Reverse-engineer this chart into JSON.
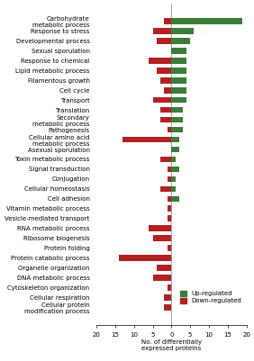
{
  "categories": [
    "Carbohydrate\nmetabolic process",
    "Response to stress",
    "Developmental process",
    "Sexual sporulation",
    "Response to chemical",
    "Lipid metabolic process",
    "Filamentous growth",
    "Cell cycle",
    "Transport",
    "Translation",
    "Secondary\nmetabolic process",
    "Pathogenesis",
    "Cellular amino acid\nmetabolic process",
    "Asexual sporulation",
    "Toxin metabolic process",
    "Signal transduction",
    "Conjugation",
    "Cellular homeostasis",
    "Cell adhesion",
    "Vitamin metabolic process",
    "Vesicle-mediated transport",
    "RNA metabolic process",
    "Ribosome biogenesis",
    "Protein folding",
    "Protein catabolic process",
    "Organelle organization",
    "DNA metabolic process",
    "Cytoskeleton organization",
    "Cellular respiration",
    "Cellular protein\nmodification process"
  ],
  "up_regulated": [
    19,
    6,
    5,
    4,
    4,
    4,
    4,
    4,
    4,
    3,
    3,
    3,
    2,
    2,
    1,
    2,
    1,
    1,
    2,
    0,
    0,
    0,
    0,
    0,
    0,
    0,
    0,
    0,
    0,
    0
  ],
  "down_regulated": [
    -2,
    -5,
    -4,
    0,
    -6,
    -4,
    -3,
    -2,
    -5,
    -3,
    -3,
    -1,
    -13,
    0,
    -3,
    -1,
    -1,
    -3,
    -1,
    -1,
    -1,
    -6,
    -5,
    -1,
    -14,
    -4,
    -5,
    -1,
    -2,
    -2
  ],
  "up_color": "#3a7d3a",
  "down_color": "#b22222",
  "background_color": "#ffffff",
  "xlabel": "No. of differentially\nexpressed proteins",
  "xlim": [
    -20,
    20
  ],
  "xticks": [
    -20,
    -15,
    -10,
    -5,
    0,
    5,
    10,
    15,
    20
  ],
  "xticklabels": [
    "20",
    "15",
    "10",
    "5",
    "0",
    "5",
    "10",
    "15",
    "20"
  ],
  "legend_up": "Up-regulated",
  "legend_down": "Down-regulated",
  "label_fontsize": 5.0,
  "tick_fontsize": 5.0,
  "ylabel_fontsize": 6.0,
  "bar_height": 0.6
}
